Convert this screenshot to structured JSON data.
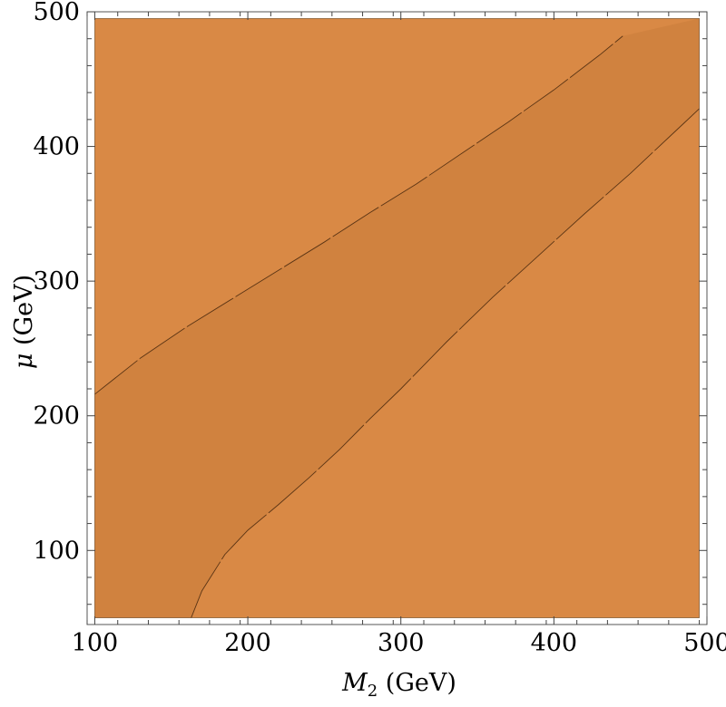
{
  "chart_data": {
    "type": "contour",
    "title": "",
    "xlabel": {
      "symbol": "M",
      "subscript": "2",
      "unit": " (GeV)"
    },
    "ylabel": {
      "symbol": "μ",
      "unit": " (GeV)"
    },
    "xlim": [
      95,
      500
    ],
    "ylim": [
      45,
      500
    ],
    "plot_region": {
      "x": [
        100,
        495
      ],
      "y": [
        50,
        495
      ]
    },
    "xticks": [
      100,
      200,
      300,
      400,
      500
    ],
    "xtick_labels": [
      "100",
      "200",
      "300",
      "400",
      "500"
    ],
    "yticks": [
      100,
      200,
      300,
      400,
      500
    ],
    "ytick_labels": [
      "100",
      "200",
      "300",
      "400",
      "500"
    ],
    "colors": {
      "outer_region": "#d98945",
      "inner_region": "#d0823f",
      "contour_line": "#5a3414",
      "frame": "#555555"
    },
    "regions": [
      {
        "name": "",
        "fill": "#d0823f"
      }
    ],
    "contours": [
      {
        "name": "",
        "x": [
          100,
          130,
          160,
          190,
          220,
          250,
          280,
          310,
          340,
          370,
          400,
          430,
          445
        ],
        "y": [
          216,
          243,
          266,
          287,
          308,
          329,
          351,
          372,
          395,
          418,
          442,
          468,
          482
        ]
      },
      {
        "name": "",
        "x": [
          163,
          170,
          185,
          200,
          220,
          240,
          260,
          280,
          300,
          330,
          360,
          390,
          420,
          450,
          480,
          495
        ],
        "y": [
          50,
          70,
          97,
          115,
          134,
          154,
          175,
          198,
          220,
          255,
          288,
          319,
          350,
          380,
          412,
          428
        ]
      }
    ]
  }
}
